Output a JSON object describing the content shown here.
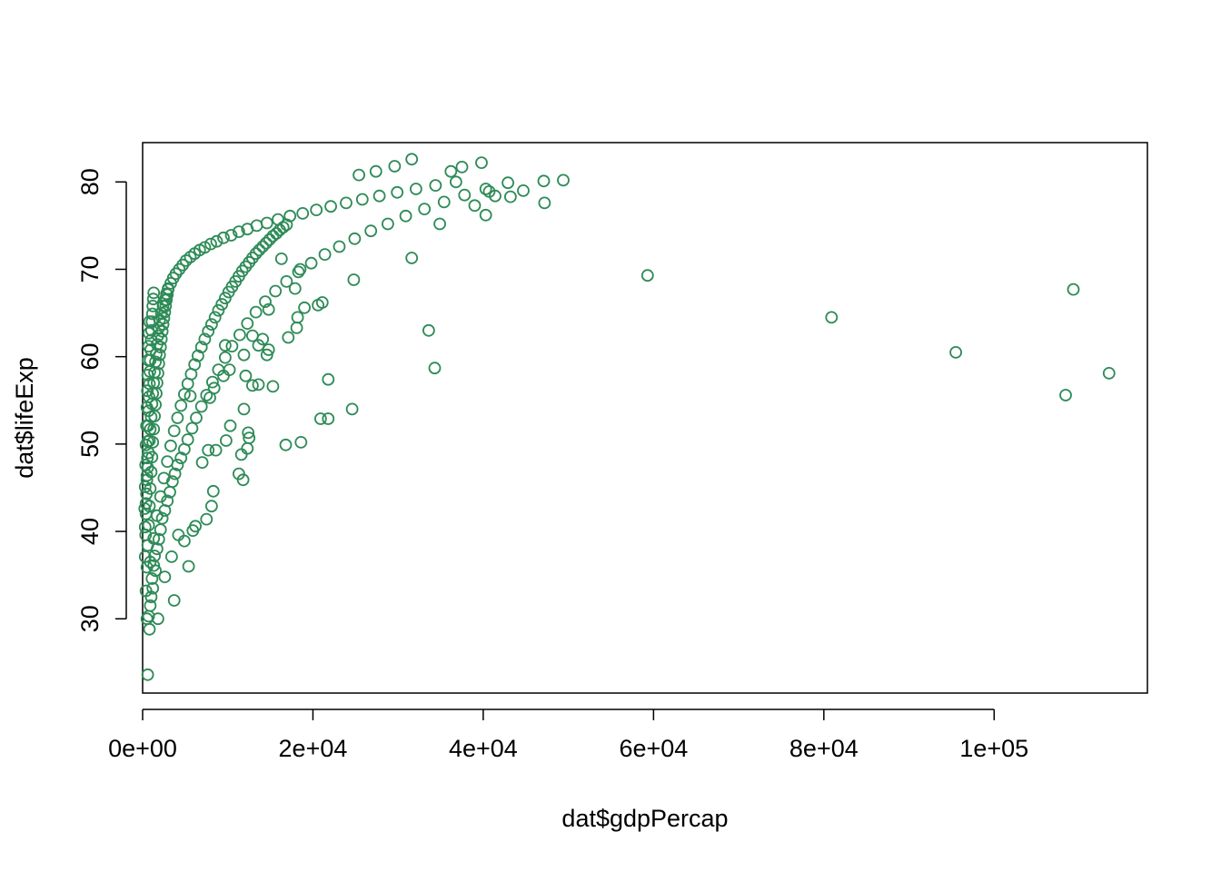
{
  "chart_data": {
    "type": "scatter",
    "title": "",
    "xlabel": "dat$gdpPercap",
    "ylabel": "dat$lifeExp",
    "xlim": [
      0,
      118000
    ],
    "ylim": [
      21.5,
      84.5
    ],
    "x_ticks": [
      {
        "value": 0,
        "label": "0e+00"
      },
      {
        "value": 20000,
        "label": "2e+04"
      },
      {
        "value": 40000,
        "label": "4e+04"
      },
      {
        "value": 60000,
        "label": "6e+04"
      },
      {
        "value": 80000,
        "label": "8e+04"
      },
      {
        "value": 100000,
        "label": "1e+05"
      }
    ],
    "y_ticks": [
      {
        "value": 30,
        "label": "30"
      },
      {
        "value": 40,
        "label": "40"
      },
      {
        "value": 50,
        "label": "50"
      },
      {
        "value": 60,
        "label": "60"
      },
      {
        "value": 70,
        "label": "70"
      },
      {
        "value": 80,
        "label": "80"
      }
    ],
    "grid": false,
    "legend": "none",
    "marker": "open-circle",
    "point_color": "#2E8B57",
    "points": [
      [
        600,
        23.6
      ],
      [
        800,
        28.8
      ],
      [
        500,
        30.0
      ],
      [
        700,
        30.3
      ],
      [
        900,
        31.5
      ],
      [
        1000,
        32.5
      ],
      [
        1200,
        33.5
      ],
      [
        1100,
        34.6
      ],
      [
        1500,
        35.5
      ],
      [
        1300,
        36.1
      ],
      [
        1400,
        37.2
      ],
      [
        1700,
        38.0
      ],
      [
        1900,
        39.1
      ],
      [
        2100,
        40.2
      ],
      [
        2300,
        41.5
      ],
      [
        2600,
        42.4
      ],
      [
        2900,
        43.5
      ],
      [
        3200,
        44.5
      ],
      [
        3500,
        45.7
      ],
      [
        3800,
        46.6
      ],
      [
        4100,
        47.6
      ],
      [
        4500,
        48.4
      ],
      [
        4900,
        49.4
      ],
      [
        5300,
        50.5
      ],
      [
        5800,
        51.8
      ],
      [
        6300,
        53.0
      ],
      [
        6900,
        54.3
      ],
      [
        7500,
        55.6
      ],
      [
        8200,
        57.1
      ],
      [
        8900,
        58.5
      ],
      [
        9700,
        59.9
      ],
      [
        10500,
        61.2
      ],
      [
        11400,
        62.5
      ],
      [
        12300,
        63.8
      ],
      [
        13300,
        65.1
      ],
      [
        14400,
        66.3
      ],
      [
        15600,
        67.5
      ],
      [
        16900,
        68.6
      ],
      [
        18300,
        69.7
      ],
      [
        19800,
        70.7
      ],
      [
        21400,
        71.7
      ],
      [
        23100,
        72.6
      ],
      [
        24900,
        73.5
      ],
      [
        26800,
        74.4
      ],
      [
        28800,
        75.2
      ],
      [
        30900,
        76.1
      ],
      [
        33100,
        76.9
      ],
      [
        35400,
        77.7
      ],
      [
        37800,
        78.5
      ],
      [
        40300,
        79.2
      ],
      [
        42900,
        79.9
      ],
      [
        300,
        40.5
      ],
      [
        400,
        43.2
      ],
      [
        500,
        45.9
      ],
      [
        600,
        47.3
      ],
      [
        700,
        49.0
      ],
      [
        800,
        50.4
      ],
      [
        900,
        51.7
      ],
      [
        1000,
        53.1
      ],
      [
        1100,
        54.6
      ],
      [
        1200,
        55.8
      ],
      [
        1300,
        57.0
      ],
      [
        1400,
        58.2
      ],
      [
        1500,
        59.4
      ],
      [
        1600,
        60.3
      ],
      [
        1700,
        61.4
      ],
      [
        1800,
        62.4
      ],
      [
        1900,
        63.3
      ],
      [
        2000,
        64.2
      ],
      [
        2200,
        65.0
      ],
      [
        2400,
        65.8
      ],
      [
        2600,
        66.5
      ],
      [
        2800,
        67.2
      ],
      [
        3000,
        67.8
      ],
      [
        3300,
        68.4
      ],
      [
        3600,
        69.0
      ],
      [
        3900,
        69.5
      ],
      [
        4300,
        70.0
      ],
      [
        4700,
        70.5
      ],
      [
        5100,
        71.0
      ],
      [
        5600,
        71.4
      ],
      [
        6100,
        71.8
      ],
      [
        6700,
        72.2
      ],
      [
        7300,
        72.5
      ],
      [
        8000,
        72.9
      ],
      [
        8700,
        73.2
      ],
      [
        9500,
        73.6
      ],
      [
        10400,
        73.9
      ],
      [
        11300,
        74.3
      ],
      [
        12300,
        74.6
      ],
      [
        13400,
        75.0
      ],
      [
        14600,
        75.3
      ],
      [
        15900,
        75.7
      ],
      [
        17300,
        76.1
      ],
      [
        18800,
        76.4
      ],
      [
        20400,
        76.8
      ],
      [
        22100,
        77.2
      ],
      [
        23900,
        77.6
      ],
      [
        25800,
        78.0
      ],
      [
        27800,
        78.4
      ],
      [
        29900,
        78.8
      ],
      [
        32100,
        79.2
      ],
      [
        34400,
        79.6
      ],
      [
        36800,
        80.0
      ],
      [
        900,
        36.5
      ],
      [
        1300,
        39.2
      ],
      [
        1700,
        41.8
      ],
      [
        2100,
        44.0
      ],
      [
        2500,
        46.1
      ],
      [
        2900,
        48.0
      ],
      [
        3300,
        49.8
      ],
      [
        3700,
        51.5
      ],
      [
        4100,
        53.0
      ],
      [
        4500,
        54.4
      ],
      [
        4900,
        55.7
      ],
      [
        5300,
        56.9
      ],
      [
        5700,
        58.0
      ],
      [
        6100,
        59.1
      ],
      [
        6500,
        60.1
      ],
      [
        6900,
        61.1
      ],
      [
        7300,
        62.0
      ],
      [
        7700,
        62.9
      ],
      [
        8100,
        63.7
      ],
      [
        8500,
        64.5
      ],
      [
        8900,
        65.3
      ],
      [
        9300,
        66.0
      ],
      [
        9700,
        66.7
      ],
      [
        10100,
        67.4
      ],
      [
        10500,
        68.0
      ],
      [
        10900,
        68.6
      ],
      [
        11300,
        69.2
      ],
      [
        11700,
        69.8
      ],
      [
        12100,
        70.3
      ],
      [
        12500,
        70.8
      ],
      [
        12900,
        71.3
      ],
      [
        13300,
        71.8
      ],
      [
        13700,
        72.2
      ],
      [
        14100,
        72.6
      ],
      [
        14500,
        73.0
      ],
      [
        14900,
        73.4
      ],
      [
        15300,
        73.8
      ],
      [
        15700,
        74.1
      ],
      [
        16100,
        74.5
      ],
      [
        16500,
        74.8
      ],
      [
        16900,
        75.1
      ],
      [
        400,
        33.2
      ],
      [
        500,
        35.9
      ],
      [
        600,
        38.4
      ],
      [
        700,
        40.7
      ],
      [
        800,
        42.9
      ],
      [
        900,
        44.9
      ],
      [
        1000,
        46.8
      ],
      [
        1100,
        48.5
      ],
      [
        1200,
        50.2
      ],
      [
        1300,
        51.7
      ],
      [
        1400,
        53.2
      ],
      [
        1500,
        54.5
      ],
      [
        1600,
        55.8
      ],
      [
        1700,
        57.0
      ],
      [
        1800,
        58.1
      ],
      [
        1900,
        59.2
      ],
      [
        2000,
        60.2
      ],
      [
        2100,
        61.1
      ],
      [
        2200,
        62.0
      ],
      [
        2300,
        62.9
      ],
      [
        2400,
        63.7
      ],
      [
        2500,
        64.4
      ],
      [
        2600,
        65.1
      ],
      [
        2700,
        65.8
      ],
      [
        2800,
        66.5
      ],
      [
        2900,
        67.1
      ],
      [
        3000,
        67.7
      ],
      [
        300,
        37.1
      ],
      [
        350,
        39.6
      ],
      [
        400,
        42.0
      ],
      [
        450,
        44.3
      ],
      [
        500,
        46.4
      ],
      [
        550,
        48.4
      ],
      [
        600,
        50.3
      ],
      [
        650,
        52.1
      ],
      [
        700,
        53.8
      ],
      [
        750,
        55.4
      ],
      [
        800,
        56.9
      ],
      [
        850,
        58.3
      ],
      [
        900,
        59.6
      ],
      [
        950,
        60.8
      ],
      [
        1000,
        61.9
      ],
      [
        1050,
        63.0
      ],
      [
        1100,
        64.0
      ],
      [
        1150,
        64.9
      ],
      [
        1200,
        65.8
      ],
      [
        1250,
        66.6
      ],
      [
        1300,
        67.3
      ],
      [
        250,
        42.6
      ],
      [
        300,
        45.1
      ],
      [
        350,
        47.6
      ],
      [
        400,
        49.9
      ],
      [
        450,
        52.1
      ],
      [
        500,
        54.2
      ],
      [
        550,
        56.1
      ],
      [
        600,
        57.9
      ],
      [
        650,
        59.6
      ],
      [
        700,
        61.2
      ],
      [
        750,
        62.7
      ],
      [
        800,
        64.0
      ],
      [
        1800,
        30.0
      ],
      [
        2600,
        34.8
      ],
      [
        3400,
        37.1
      ],
      [
        3700,
        32.1
      ],
      [
        4200,
        39.6
      ],
      [
        4900,
        38.9
      ],
      [
        5400,
        36.0
      ],
      [
        5900,
        40.1
      ],
      [
        6200,
        40.6
      ],
      [
        7500,
        41.4
      ],
      [
        8100,
        42.9
      ],
      [
        8300,
        44.6
      ],
      [
        7700,
        49.3
      ],
      [
        8600,
        49.3
      ],
      [
        7000,
        47.9
      ],
      [
        9800,
        50.4
      ],
      [
        11800,
        45.9
      ],
      [
        11300,
        46.6
      ],
      [
        11600,
        48.8
      ],
      [
        12300,
        49.5
      ],
      [
        12500,
        50.7
      ],
      [
        10300,
        52.1
      ],
      [
        11900,
        54.0
      ],
      [
        12400,
        51.3
      ],
      [
        5600,
        55.5
      ],
      [
        7900,
        55.3
      ],
      [
        8400,
        56.4
      ],
      [
        9500,
        57.8
      ],
      [
        12100,
        57.8
      ],
      [
        12900,
        56.7
      ],
      [
        13600,
        56.8
      ],
      [
        15300,
        56.6
      ],
      [
        10200,
        58.5
      ],
      [
        11900,
        60.2
      ],
      [
        9700,
        61.3
      ],
      [
        13600,
        61.3
      ],
      [
        14100,
        62.0
      ],
      [
        14600,
        60.2
      ],
      [
        14800,
        60.8
      ],
      [
        12900,
        62.4
      ],
      [
        17100,
        62.2
      ],
      [
        18100,
        63.3
      ],
      [
        18200,
        64.5
      ],
      [
        19000,
        65.6
      ],
      [
        20600,
        65.9
      ],
      [
        21100,
        66.2
      ],
      [
        14800,
        65.4
      ],
      [
        17900,
        67.8
      ],
      [
        18500,
        70.0
      ],
      [
        16300,
        71.2
      ],
      [
        21800,
        57.4
      ],
      [
        21800,
        52.9
      ],
      [
        20900,
        52.9
      ],
      [
        24600,
        54.0
      ],
      [
        18600,
        50.2
      ],
      [
        16800,
        49.9
      ],
      [
        24800,
        68.8
      ],
      [
        31600,
        71.3
      ],
      [
        33600,
        63.0
      ],
      [
        34300,
        58.7
      ],
      [
        34900,
        75.2
      ],
      [
        39000,
        77.3
      ],
      [
        40300,
        76.2
      ],
      [
        40700,
        78.9
      ],
      [
        41400,
        78.4
      ],
      [
        43200,
        78.3
      ],
      [
        44700,
        79.0
      ],
      [
        47100,
        80.1
      ],
      [
        47200,
        77.6
      ],
      [
        49400,
        80.2
      ],
      [
        36200,
        81.2
      ],
      [
        37500,
        81.7
      ],
      [
        39800,
        82.2
      ],
      [
        31600,
        82.6
      ],
      [
        29600,
        81.8
      ],
      [
        27400,
        81.2
      ],
      [
        25400,
        80.8
      ],
      [
        59300,
        69.3
      ],
      [
        80900,
        64.5
      ],
      [
        95500,
        60.5
      ],
      [
        109300,
        67.7
      ],
      [
        108400,
        55.6
      ],
      [
        113500,
        58.1
      ]
    ]
  }
}
